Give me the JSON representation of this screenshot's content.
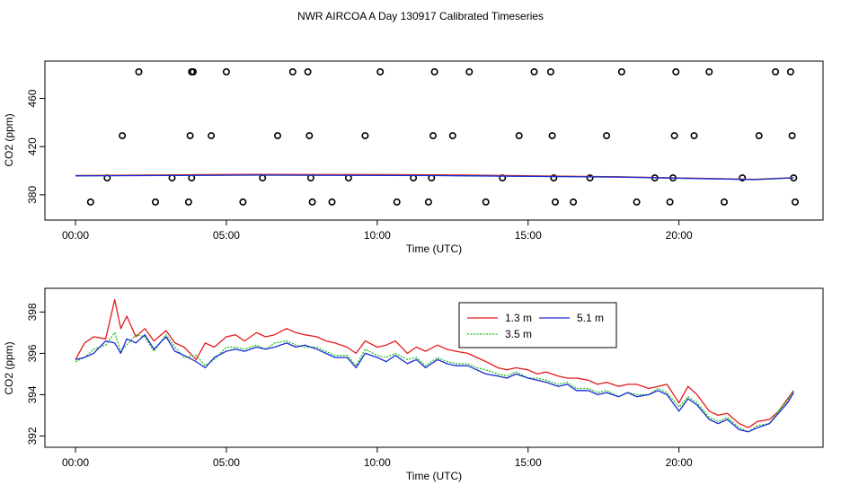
{
  "figure_title": "NWR AIRCOA A  Day 130917  Calibrated Timeseries",
  "colors": {
    "h13": "#e41a1c",
    "h35": "#1dbf1d",
    "h51": "#1a2bd6",
    "axis": "#000000"
  },
  "chart_data": [
    {
      "type": "scatter",
      "title": "",
      "xlabel": "Time (UTC)",
      "ylabel": "CO2 (ppm)",
      "xlim": [
        0,
        24
      ],
      "ylim": [
        365,
        485
      ],
      "xticks": [
        0,
        5,
        10,
        15,
        20
      ],
      "xtick_labels": [
        "00:00",
        "05:00",
        "10:00",
        "15:00",
        "20:00"
      ],
      "yticks": [
        380,
        420,
        460
      ],
      "ytick_labels": [
        "380",
        "420",
        "460"
      ],
      "grid": false,
      "calibration_points": {
        "marker": "open circle",
        "x": [
          0.5,
          1.05,
          1.55,
          2.1,
          2.65,
          3.2,
          3.75,
          3.8,
          3.85,
          3.85,
          3.9,
          4.5,
          5.0,
          5.55,
          6.2,
          6.7,
          7.2,
          7.7,
          7.75,
          7.8,
          7.85,
          8.5,
          9.05,
          9.6,
          10.1,
          10.65,
          11.2,
          11.7,
          11.8,
          11.85,
          11.9,
          12.5,
          13.05,
          13.6,
          14.15,
          14.7,
          15.2,
          15.75,
          15.8,
          15.85,
          15.9,
          16.5,
          17.05,
          17.6,
          18.1,
          18.6,
          19.2,
          19.7,
          19.8,
          19.85,
          19.9,
          20.5,
          21.0,
          21.5,
          22.1,
          22.65,
          23.2,
          23.7,
          23.75,
          23.8,
          23.85
        ],
        "y": [
          374,
          394,
          429,
          482,
          374,
          394,
          374,
          429,
          482,
          394,
          482,
          429,
          482,
          374,
          394,
          429,
          482,
          482,
          429,
          394,
          374,
          374,
          394,
          429,
          482,
          374,
          394,
          374,
          394,
          429,
          482,
          429,
          482,
          374,
          394,
          429,
          482,
          482,
          429,
          394,
          374,
          374,
          394,
          429,
          482,
          374,
          394,
          374,
          394,
          429,
          482,
          429,
          482,
          374,
          394,
          429,
          482,
          482,
          429,
          394,
          374
        ]
      },
      "series": [
        {
          "name": "1.3 m",
          "x": [
            0,
            6,
            12,
            18,
            22.5,
            23.8
          ],
          "y": [
            396,
            397,
            396.6,
            395,
            392.8,
            394.2
          ]
        },
        {
          "name": "3.5 m",
          "x": [
            0,
            6,
            12,
            18,
            22.5,
            23.8
          ],
          "y": [
            395.8,
            396.4,
            396,
            394.8,
            392.6,
            394.2
          ]
        },
        {
          "name": "5.1 m",
          "x": [
            0,
            6,
            12,
            18,
            22.5,
            23.8
          ],
          "y": [
            395.7,
            396.3,
            395.9,
            394.7,
            392.6,
            394.1
          ]
        }
      ]
    },
    {
      "type": "line",
      "title": "",
      "xlabel": "Time (UTC)",
      "ylabel": "CO2 (ppm)",
      "xlim": [
        0,
        24
      ],
      "ylim": [
        391.8,
        398.8
      ],
      "xticks": [
        0,
        5,
        10,
        15,
        20
      ],
      "xtick_labels": [
        "00:00",
        "05:00",
        "10:00",
        "15:00",
        "20:00"
      ],
      "yticks": [
        392,
        394,
        396,
        398
      ],
      "ytick_labels": [
        "392",
        "394",
        "396",
        "398"
      ],
      "grid": false,
      "legend_position": "top-right",
      "series": [
        {
          "name": "1.3 m",
          "x": [
            0.0,
            0.3,
            0.6,
            1.0,
            1.3,
            1.5,
            1.7,
            2.0,
            2.3,
            2.6,
            3.0,
            3.3,
            3.6,
            4.0,
            4.3,
            4.6,
            5.0,
            5.3,
            5.6,
            6.0,
            6.3,
            6.6,
            7.0,
            7.3,
            7.6,
            8.0,
            8.3,
            8.6,
            9.0,
            9.3,
            9.6,
            10.0,
            10.3,
            10.6,
            11.0,
            11.3,
            11.6,
            12.0,
            12.3,
            12.6,
            13.0,
            13.3,
            13.6,
            14.0,
            14.3,
            14.6,
            15.0,
            15.3,
            15.6,
            16.0,
            16.3,
            16.6,
            17.0,
            17.3,
            17.6,
            18.0,
            18.3,
            18.6,
            19.0,
            19.3,
            19.6,
            20.0,
            20.3,
            20.6,
            21.0,
            21.3,
            21.6,
            22.0,
            22.3,
            22.6,
            23.0,
            23.3,
            23.6,
            23.8
          ],
          "y": [
            395.7,
            396.5,
            396.8,
            396.7,
            398.6,
            397.2,
            397.8,
            396.8,
            397.2,
            396.6,
            397.1,
            396.5,
            396.3,
            395.7,
            396.5,
            396.3,
            396.8,
            396.9,
            396.6,
            397.0,
            396.8,
            396.9,
            397.2,
            397.0,
            396.9,
            396.8,
            396.6,
            396.5,
            396.3,
            396.0,
            396.6,
            396.3,
            396.4,
            396.6,
            396.0,
            396.3,
            396.1,
            396.4,
            396.2,
            396.1,
            396.0,
            395.8,
            395.6,
            395.3,
            395.2,
            395.3,
            395.2,
            395.0,
            395.1,
            394.9,
            394.8,
            394.8,
            394.7,
            394.5,
            394.6,
            394.4,
            394.5,
            394.5,
            394.3,
            394.4,
            394.5,
            393.6,
            394.4,
            394.0,
            393.2,
            393.0,
            393.1,
            392.6,
            392.4,
            392.7,
            392.8,
            393.2,
            393.8,
            394.2
          ]
        },
        {
          "name": "3.5 m",
          "x": [
            0.0,
            0.3,
            0.6,
            1.0,
            1.3,
            1.5,
            1.7,
            2.0,
            2.3,
            2.6,
            3.0,
            3.3,
            3.6,
            4.0,
            4.3,
            4.6,
            5.0,
            5.3,
            5.6,
            6.0,
            6.3,
            6.6,
            7.0,
            7.3,
            7.6,
            8.0,
            8.3,
            8.6,
            9.0,
            9.3,
            9.6,
            10.0,
            10.3,
            10.6,
            11.0,
            11.3,
            11.6,
            12.0,
            12.3,
            12.6,
            13.0,
            13.3,
            13.6,
            14.0,
            14.3,
            14.6,
            15.0,
            15.3,
            15.6,
            16.0,
            16.3,
            16.6,
            17.0,
            17.3,
            17.6,
            18.0,
            18.3,
            18.6,
            19.0,
            19.3,
            19.6,
            20.0,
            20.3,
            20.6,
            21.0,
            21.3,
            21.6,
            22.0,
            22.3,
            22.6,
            23.0,
            23.3,
            23.6,
            23.8
          ],
          "y": [
            395.6,
            395.8,
            396.2,
            396.4,
            397.0,
            396.1,
            396.4,
            396.9,
            396.8,
            396.1,
            396.9,
            396.3,
            395.8,
            395.9,
            395.4,
            395.7,
            396.3,
            396.3,
            396.2,
            396.4,
            396.2,
            396.5,
            396.6,
            396.4,
            396.3,
            396.3,
            396.1,
            395.9,
            395.9,
            395.4,
            396.2,
            395.9,
            395.8,
            396.0,
            395.7,
            395.8,
            395.4,
            395.8,
            395.6,
            395.5,
            395.5,
            395.3,
            395.2,
            395.0,
            394.9,
            395.1,
            394.8,
            394.8,
            394.7,
            394.5,
            394.6,
            394.3,
            394.3,
            394.1,
            394.2,
            393.9,
            394.1,
            394.0,
            394.0,
            394.3,
            394.1,
            393.4,
            393.9,
            393.6,
            392.9,
            392.7,
            392.9,
            392.4,
            392.2,
            392.5,
            392.6,
            393.2,
            393.7,
            394.2
          ]
        },
        {
          "name": "5.1 m",
          "x": [
            0.0,
            0.3,
            0.6,
            1.0,
            1.3,
            1.5,
            1.7,
            2.0,
            2.3,
            2.6,
            3.0,
            3.3,
            3.6,
            4.0,
            4.3,
            4.6,
            5.0,
            5.3,
            5.6,
            6.0,
            6.3,
            6.6,
            7.0,
            7.3,
            7.6,
            8.0,
            8.3,
            8.6,
            9.0,
            9.3,
            9.6,
            10.0,
            10.3,
            10.6,
            11.0,
            11.3,
            11.6,
            12.0,
            12.3,
            12.6,
            13.0,
            13.3,
            13.6,
            14.0,
            14.3,
            14.6,
            15.0,
            15.3,
            15.6,
            16.0,
            16.3,
            16.6,
            17.0,
            17.3,
            17.6,
            18.0,
            18.3,
            18.6,
            19.0,
            19.3,
            19.6,
            20.0,
            20.3,
            20.6,
            21.0,
            21.3,
            21.6,
            22.0,
            22.3,
            22.6,
            23.0,
            23.3,
            23.6,
            23.8
          ],
          "y": [
            395.7,
            395.8,
            396.0,
            396.6,
            396.5,
            396.0,
            396.7,
            396.5,
            396.9,
            396.2,
            396.8,
            396.1,
            395.9,
            395.6,
            395.3,
            395.8,
            396.1,
            396.2,
            396.1,
            396.3,
            396.2,
            396.3,
            396.5,
            396.3,
            396.4,
            396.2,
            396.0,
            395.8,
            395.8,
            395.3,
            396.0,
            395.8,
            395.6,
            395.9,
            395.5,
            395.7,
            395.3,
            395.7,
            395.5,
            395.4,
            395.4,
            395.2,
            395.0,
            394.9,
            394.8,
            395.0,
            394.8,
            394.7,
            394.6,
            394.4,
            394.5,
            394.2,
            394.2,
            394.0,
            394.1,
            393.9,
            394.1,
            393.9,
            394.0,
            394.2,
            394.0,
            393.2,
            393.8,
            393.5,
            392.8,
            392.6,
            392.8,
            392.3,
            392.2,
            392.4,
            392.6,
            393.1,
            393.6,
            394.1
          ]
        }
      ]
    }
  ]
}
